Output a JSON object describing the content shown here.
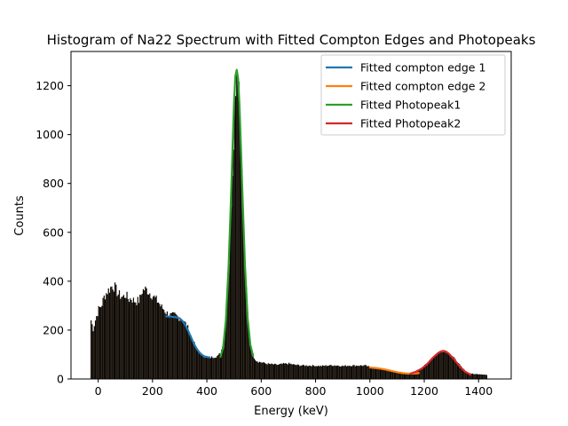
{
  "chart_data": {
    "type": "histogram",
    "title": "Histogram of Na22 Spectrum with Fitted Compton Edges and Photopeaks",
    "xlabel": "Energy (keV)",
    "ylabel": "Counts",
    "xlim": [
      -100,
      1520
    ],
    "ylim": [
      0,
      1340
    ],
    "xticks": [
      0,
      200,
      400,
      600,
      800,
      1000,
      1200,
      1400
    ],
    "yticks": [
      0,
      200,
      400,
      600,
      800,
      1000,
      1200
    ],
    "grid": false,
    "legend_position": "upper right",
    "histogram": {
      "color": "#0d0701",
      "bin_width": 4,
      "points": [
        [
          -30,
          0
        ],
        [
          -28,
          240
        ],
        [
          -20,
          205
        ],
        [
          -10,
          250
        ],
        [
          0,
          285
        ],
        [
          10,
          300
        ],
        [
          20,
          335
        ],
        [
          30,
          355
        ],
        [
          40,
          368
        ],
        [
          50,
          382
        ],
        [
          60,
          375
        ],
        [
          70,
          350
        ],
        [
          80,
          340
        ],
        [
          90,
          335
        ],
        [
          100,
          345
        ],
        [
          110,
          325
        ],
        [
          120,
          330
        ],
        [
          130,
          320
        ],
        [
          140,
          318
        ],
        [
          150,
          322
        ],
        [
          160,
          360
        ],
        [
          170,
          368
        ],
        [
          180,
          362
        ],
        [
          190,
          350
        ],
        [
          200,
          340
        ],
        [
          210,
          325
        ],
        [
          220,
          315
        ],
        [
          230,
          295
        ],
        [
          240,
          285
        ],
        [
          250,
          270
        ],
        [
          260,
          262
        ],
        [
          270,
          258
        ],
        [
          280,
          260
        ],
        [
          290,
          255
        ],
        [
          300,
          250
        ],
        [
          310,
          240
        ],
        [
          320,
          225
        ],
        [
          330,
          205
        ],
        [
          340,
          175
        ],
        [
          350,
          148
        ],
        [
          360,
          125
        ],
        [
          370,
          110
        ],
        [
          380,
          98
        ],
        [
          390,
          92
        ],
        [
          400,
          88
        ],
        [
          410,
          88
        ],
        [
          420,
          90
        ],
        [
          430,
          92
        ],
        [
          440,
          95
        ],
        [
          450,
          110
        ],
        [
          460,
          160
        ],
        [
          470,
          270
        ],
        [
          480,
          480
        ],
        [
          490,
          800
        ],
        [
          500,
          1130
        ],
        [
          505,
          1240
        ],
        [
          510,
          1290
        ],
        [
          515,
          1250
        ],
        [
          520,
          1100
        ],
        [
          530,
          760
        ],
        [
          540,
          440
        ],
        [
          550,
          230
        ],
        [
          560,
          130
        ],
        [
          570,
          92
        ],
        [
          580,
          75
        ],
        [
          590,
          70
        ],
        [
          600,
          68
        ],
        [
          620,
          62
        ],
        [
          640,
          60
        ],
        [
          660,
          58
        ],
        [
          680,
          62
        ],
        [
          700,
          63
        ],
        [
          720,
          58
        ],
        [
          740,
          56
        ],
        [
          760,
          55
        ],
        [
          780,
          55
        ],
        [
          800,
          54
        ],
        [
          820,
          53
        ],
        [
          840,
          55
        ],
        [
          860,
          56
        ],
        [
          880,
          55
        ],
        [
          900,
          53
        ],
        [
          920,
          55
        ],
        [
          940,
          55
        ],
        [
          960,
          55
        ],
        [
          980,
          55
        ],
        [
          1000,
          48
        ],
        [
          1020,
          44
        ],
        [
          1040,
          40
        ],
        [
          1060,
          35
        ],
        [
          1080,
          30
        ],
        [
          1100,
          25
        ],
        [
          1120,
          22
        ],
        [
          1140,
          22
        ],
        [
          1160,
          28
        ],
        [
          1180,
          40
        ],
        [
          1200,
          55
        ],
        [
          1220,
          75
        ],
        [
          1240,
          98
        ],
        [
          1260,
          113
        ],
        [
          1270,
          118
        ],
        [
          1280,
          112
        ],
        [
          1300,
          95
        ],
        [
          1320,
          68
        ],
        [
          1340,
          42
        ],
        [
          1360,
          25
        ],
        [
          1380,
          20
        ],
        [
          1400,
          20
        ],
        [
          1420,
          18
        ],
        [
          1430,
          16
        ]
      ]
    },
    "series": [
      {
        "name": "Fitted compton edge 1",
        "color": "#1f77b4",
        "x": [
          250,
          270,
          290,
          300,
          310,
          320,
          330,
          340,
          350,
          360,
          370,
          380,
          390,
          400,
          410
        ],
        "y": [
          256,
          255,
          252,
          248,
          238,
          222,
          200,
          175,
          150,
          128,
          112,
          100,
          93,
          90,
          88
        ]
      },
      {
        "name": "Fitted compton edge 2",
        "color": "#ff7f0e",
        "x": [
          1000,
          1020,
          1040,
          1060,
          1080,
          1100,
          1120,
          1140,
          1160,
          1180
        ],
        "y": [
          47,
          45,
          42,
          38,
          33,
          28,
          24,
          22,
          22,
          24
        ]
      },
      {
        "name": "Fitted Photopeak1",
        "color": "#2ca02c",
        "x": [
          450,
          460,
          470,
          480,
          490,
          495,
          500,
          505,
          510,
          515,
          520,
          525,
          530,
          540,
          550,
          560,
          570
        ],
        "y": [
          90,
          130,
          240,
          460,
          780,
          960,
          1130,
          1240,
          1265,
          1230,
          1120,
          960,
          790,
          470,
          250,
          140,
          95
        ]
      },
      {
        "name": "Fitted Photopeak2",
        "color": "#d62728",
        "x": [
          1150,
          1170,
          1190,
          1210,
          1230,
          1250,
          1260,
          1270,
          1280,
          1290,
          1310,
          1330,
          1350,
          1370
        ],
        "y": [
          22,
          30,
          42,
          60,
          85,
          105,
          112,
          115,
          112,
          104,
          80,
          52,
          30,
          18
        ]
      }
    ]
  }
}
